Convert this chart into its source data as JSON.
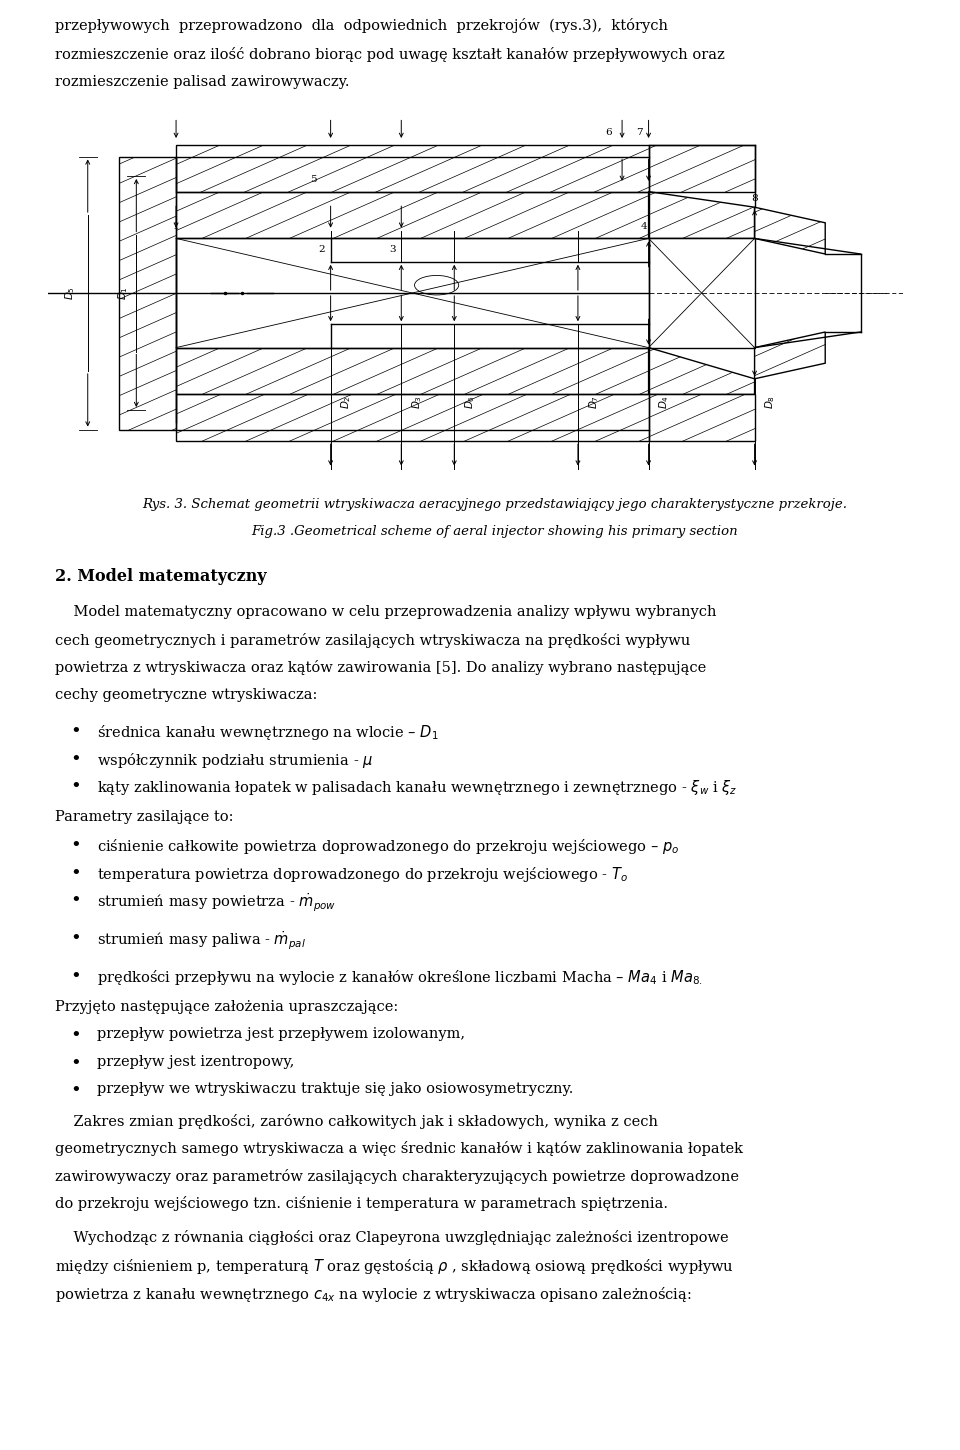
{
  "background_color": "#ffffff",
  "page_width": 9.6,
  "page_height": 14.5,
  "fig_caption_1": "Rys. 3. Schemat geometrii wtryskiwacza aeracyjnego przedstawiający jego charakterystyczne przekroje.",
  "fig_caption_2": "Fig.3 .Geometrical scheme of aeral injector showing his primary section",
  "section_heading": "2. Model matematyczny",
  "top_text_line1": "przepływowych  przeprowadzono  dla  odpowiednich  przekrojów  (rys.3),  których",
  "top_text_line2": "rozmieszczenie oraz ilość dobrano biorąc pod uwagę kształt kanałów przepływowych oraz",
  "top_text_line3": "rozmieszczenie palisad zawirowywaczy.",
  "lm": 0.55,
  "rm": 9.35,
  "fontsize": 10.5
}
